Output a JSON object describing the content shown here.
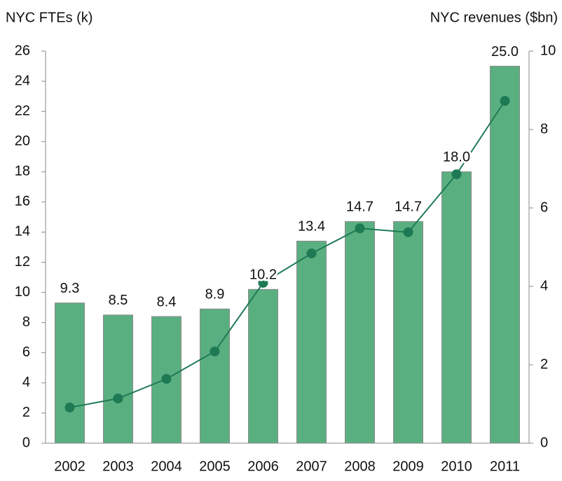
{
  "chart_data": {
    "type": "bar",
    "ylabel": "NYC FTEs (k)",
    "y2label": "NYC revenues ($bn)",
    "categories": [
      "2002",
      "2003",
      "2004",
      "2005",
      "2006",
      "2007",
      "2008",
      "2009",
      "2010",
      "2011"
    ],
    "series": [
      {
        "color": "#5aaf80",
        "values": [
          9.3,
          8.5,
          8.4,
          8.9,
          10.2,
          13.4,
          14.7,
          14.7,
          18,
          25
        ],
        "value_labels": [
          "9.3",
          "8.5",
          "8.4",
          "8.9",
          "10.2",
          "13.4",
          "14.7",
          "14.7",
          "18.0",
          "25.0"
        ]
      },
      {
        "type": "line",
        "axis": "y2",
        "color": "#1e7a55",
        "values": [
          0.91,
          1.14,
          1.64,
          2.34,
          4.09,
          4.84,
          5.48,
          5.38,
          6.86,
          8.73
        ]
      }
    ],
    "ylim": [
      0,
      26
    ],
    "yticks": [
      0,
      2,
      4,
      6,
      8,
      10,
      12,
      14,
      16,
      18,
      20,
      22,
      24,
      26
    ],
    "y2lim": [
      0,
      10
    ],
    "y2ticks": [
      0,
      2,
      4,
      6,
      8,
      10
    ]
  }
}
